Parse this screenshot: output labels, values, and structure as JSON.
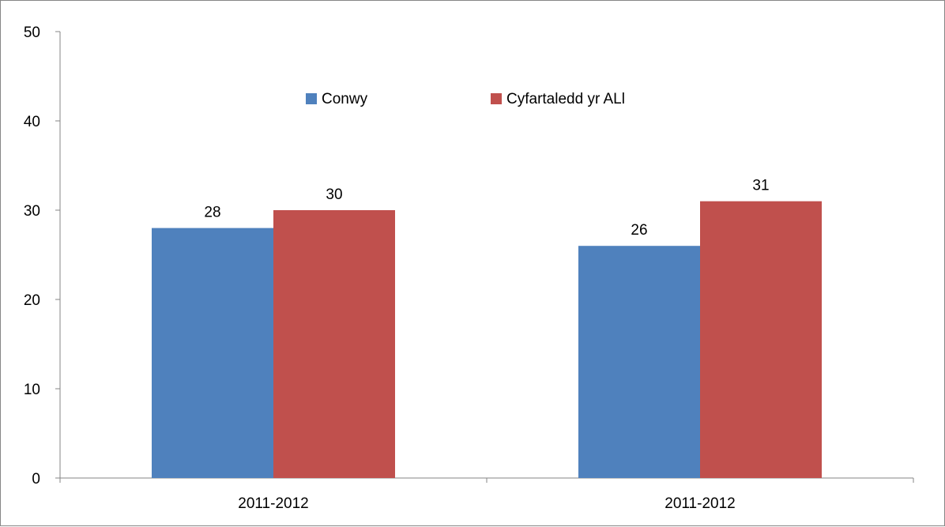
{
  "chart_data": {
    "type": "bar",
    "categories": [
      "2011-2012",
      "2011-2012"
    ],
    "series": [
      {
        "name": "Conwy",
        "values": [
          28,
          26
        ],
        "color": "#4F81BD"
      },
      {
        "name": "Cyfartaledd yr ALl",
        "values": [
          30,
          31
        ],
        "color": "#C0504D"
      }
    ],
    "ylim": [
      0,
      50
    ],
    "yticks": [
      0,
      10,
      20,
      30,
      40,
      50
    ],
    "grid": false,
    "legend_position": "top-center",
    "title": "",
    "xlabel": "",
    "ylabel": ""
  }
}
